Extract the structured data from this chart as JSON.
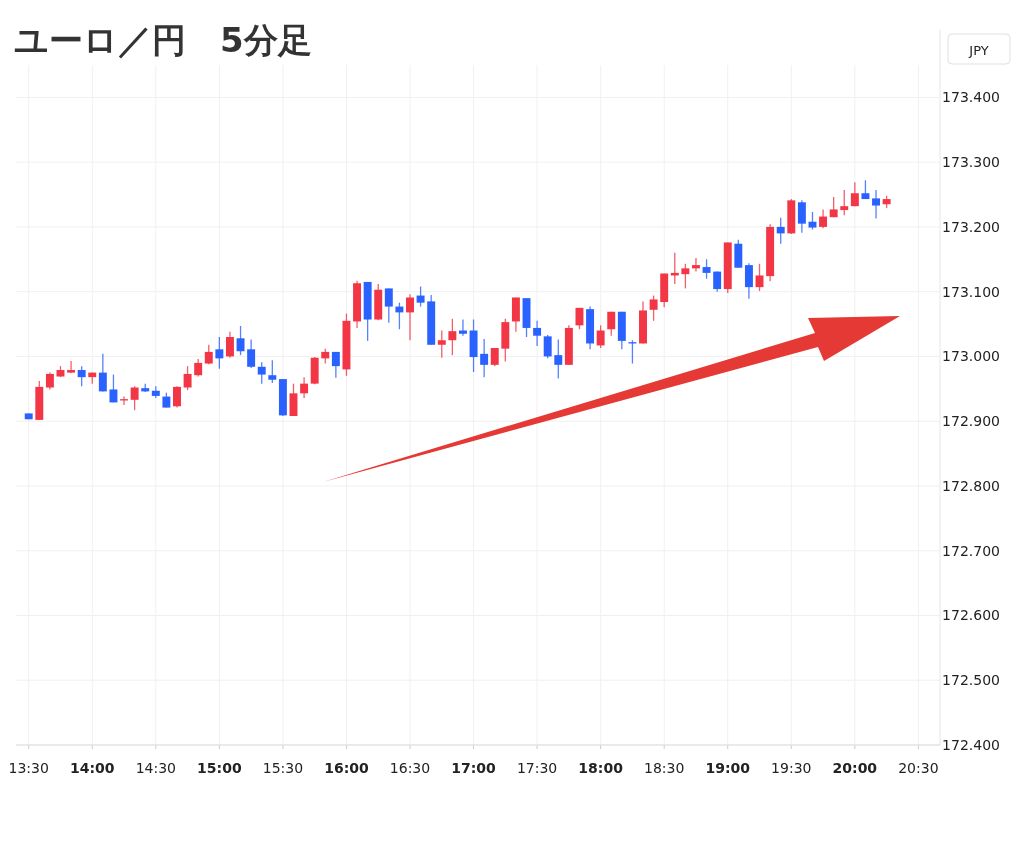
{
  "chart_data": {
    "type": "candlestick",
    "title": "ユーロ／円　5分足",
    "ylabel": "JPY",
    "grid": true,
    "x": [
      13.5,
      13.5833,
      13.6667,
      13.75,
      13.8333,
      13.9167,
      14,
      14.0833,
      14.1667,
      14.25,
      14.3333,
      14.4167,
      14.5,
      14.5833,
      14.6667,
      14.75,
      14.8333,
      14.9167,
      15,
      15.0833,
      15.1667,
      15.25,
      15.3333,
      15.4167,
      15.5,
      15.5833,
      15.6667,
      15.75,
      15.8333,
      15.9167,
      16,
      16.0833,
      16.1667,
      16.25,
      16.3333,
      16.4167,
      16.5,
      16.5833,
      16.6667,
      16.75,
      16.8333,
      16.9167,
      17,
      17.0833,
      17.1667,
      17.25,
      17.3333,
      17.4167,
      17.5,
      17.5833,
      17.6667,
      17.75,
      17.8333,
      17.9167,
      18,
      18.0833,
      18.1667,
      18.25,
      18.3333,
      18.4167,
      18.5,
      18.5833,
      18.6667,
      18.75,
      18.8333,
      18.9167,
      19,
      19.0833,
      19.1667,
      19.25,
      19.3333,
      19.4167,
      19.5,
      19.5833,
      19.6667,
      19.75,
      19.8333,
      19.9167,
      20,
      20.0833,
      20.1667,
      20.25
    ],
    "ohlc": [
      [
        172.912,
        172.912,
        172.903,
        172.903
      ],
      [
        172.902,
        172.962,
        172.902,
        172.953
      ],
      [
        172.952,
        172.975,
        172.949,
        172.973
      ],
      [
        172.969,
        172.985,
        172.968,
        172.979
      ],
      [
        172.975,
        172.993,
        172.974,
        172.979
      ],
      [
        172.979,
        172.985,
        172.954,
        172.968
      ],
      [
        172.968,
        172.975,
        172.958,
        172.975
      ],
      [
        172.975,
        173.004,
        172.946,
        172.946
      ],
      [
        172.949,
        172.972,
        172.929,
        172.929
      ],
      [
        172.932,
        172.938,
        172.925,
        172.934
      ],
      [
        172.933,
        172.954,
        172.917,
        172.952
      ],
      [
        172.951,
        172.958,
        172.945,
        172.946
      ],
      [
        172.947,
        172.954,
        172.936,
        172.939
      ],
      [
        172.938,
        172.944,
        172.921,
        172.921
      ],
      [
        172.923,
        172.954,
        172.921,
        172.953
      ],
      [
        172.952,
        172.985,
        172.948,
        172.973
      ],
      [
        172.971,
        172.996,
        172.969,
        172.99
      ],
      [
        172.989,
        173.018,
        172.988,
        173.007
      ],
      [
        173.011,
        173.03,
        172.981,
        172.997
      ],
      [
        173.0,
        173.038,
        172.998,
        173.03
      ],
      [
        173.028,
        173.047,
        173.002,
        173.008
      ],
      [
        173.011,
        173.026,
        172.982,
        172.984
      ],
      [
        172.984,
        172.991,
        172.958,
        172.972
      ],
      [
        172.971,
        172.994,
        172.959,
        172.964
      ],
      [
        172.965,
        172.965,
        172.908,
        172.909
      ],
      [
        172.908,
        172.958,
        172.908,
        172.943
      ],
      [
        172.943,
        172.968,
        172.936,
        172.958
      ],
      [
        172.958,
        172.999,
        172.957,
        172.998
      ],
      [
        172.997,
        173.012,
        172.989,
        173.007
      ],
      [
        173.007,
        173.007,
        172.967,
        172.985
      ],
      [
        172.98,
        173.066,
        172.97,
        173.055
      ],
      [
        173.054,
        173.117,
        173.044,
        173.113
      ],
      [
        173.115,
        173.115,
        173.024,
        173.057
      ],
      [
        173.057,
        173.112,
        173.056,
        173.103
      ],
      [
        173.105,
        173.105,
        173.052,
        173.077
      ],
      [
        173.077,
        173.083,
        173.042,
        173.068
      ],
      [
        173.068,
        173.096,
        173.025,
        173.091
      ],
      [
        173.094,
        173.108,
        173.077,
        173.083
      ],
      [
        173.085,
        173.095,
        173.018,
        173.018
      ],
      [
        173.018,
        173.04,
        172.998,
        173.025
      ],
      [
        173.025,
        173.058,
        173.002,
        173.039
      ],
      [
        173.04,
        173.057,
        173.032,
        173.035
      ],
      [
        173.04,
        173.057,
        172.976,
        172.999
      ],
      [
        173.004,
        173.027,
        172.968,
        172.987
      ],
      [
        172.987,
        173.013,
        172.985,
        173.013
      ],
      [
        173.012,
        173.058,
        172.992,
        173.053
      ],
      [
        173.054,
        173.091,
        173.038,
        173.091
      ],
      [
        173.09,
        173.09,
        173.03,
        173.044
      ],
      [
        173.044,
        173.055,
        173.016,
        173.032
      ],
      [
        173.031,
        173.033,
        172.997,
        173.0
      ],
      [
        173.002,
        173.026,
        172.966,
        172.987
      ],
      [
        172.987,
        173.048,
        172.987,
        173.044
      ],
      [
        173.048,
        173.075,
        173.042,
        173.075
      ],
      [
        173.073,
        173.077,
        173.011,
        173.02
      ],
      [
        173.017,
        173.048,
        173.013,
        173.04
      ],
      [
        173.042,
        173.069,
        173.032,
        173.069
      ],
      [
        173.069,
        173.069,
        173.011,
        173.024
      ],
      [
        173.022,
        173.025,
        172.989,
        173.02
      ],
      [
        173.02,
        173.085,
        173.02,
        173.071
      ],
      [
        173.072,
        173.094,
        173.055,
        173.088
      ],
      [
        173.084,
        173.128,
        173.076,
        173.128
      ],
      [
        173.125,
        173.16,
        173.112,
        173.129
      ],
      [
        173.127,
        173.143,
        173.105,
        173.136
      ],
      [
        173.136,
        173.152,
        173.131,
        173.141
      ],
      [
        173.138,
        173.15,
        173.12,
        173.129
      ],
      [
        173.131,
        173.131,
        173.1,
        173.104
      ],
      [
        173.104,
        173.176,
        173.098,
        173.176
      ],
      [
        173.174,
        173.18,
        173.137,
        173.137
      ],
      [
        173.141,
        173.144,
        173.089,
        173.107
      ],
      [
        173.107,
        173.143,
        173.101,
        173.125
      ],
      [
        173.124,
        173.204,
        173.116,
        173.2
      ],
      [
        173.2,
        173.214,
        173.174,
        173.19
      ],
      [
        173.19,
        173.243,
        173.189,
        173.241
      ],
      [
        173.238,
        173.241,
        173.191,
        173.205
      ],
      [
        173.208,
        173.223,
        173.196,
        173.199
      ],
      [
        173.2,
        173.227,
        173.198,
        173.216
      ],
      [
        173.215,
        173.246,
        173.215,
        173.227
      ],
      [
        173.226,
        173.257,
        173.218,
        173.232
      ],
      [
        173.232,
        173.269,
        173.232,
        173.252
      ],
      [
        173.252,
        173.272,
        173.243,
        173.243
      ],
      [
        173.244,
        173.257,
        173.213,
        173.233
      ],
      [
        173.235,
        173.248,
        173.229,
        173.243
      ]
    ],
    "colors": [
      "#2962ff",
      "#f23645",
      "#f23645",
      "#f23645",
      "#f23645",
      "#2962ff",
      "#f23645",
      "#2962ff",
      "#2962ff",
      "#f23645",
      "#f23645",
      "#2962ff",
      "#2962ff",
      "#2962ff",
      "#f23645",
      "#f23645",
      "#f23645",
      "#f23645",
      "#2962ff",
      "#f23645",
      "#2962ff",
      "#2962ff",
      "#2962ff",
      "#2962ff",
      "#2962ff",
      "#f23645",
      "#f23645",
      "#f23645",
      "#f23645",
      "#2962ff",
      "#f23645",
      "#f23645",
      "#2962ff",
      "#f23645",
      "#2962ff",
      "#2962ff",
      "#f23645",
      "#2962ff",
      "#2962ff",
      "#f23645",
      "#f23645",
      "#2962ff",
      "#2962ff",
      "#2962ff",
      "#f23645",
      "#f23645",
      "#f23645",
      "#2962ff",
      "#2962ff",
      "#2962ff",
      "#2962ff",
      "#f23645",
      "#f23645",
      "#2962ff",
      "#f23645",
      "#f23645",
      "#2962ff",
      "#2962ff",
      "#f23645",
      "#f23645",
      "#f23645",
      "#f23645",
      "#f23645",
      "#f23645",
      "#2962ff",
      "#2962ff",
      "#f23645",
      "#2962ff",
      "#2962ff",
      "#f23645",
      "#f23645",
      "#2962ff",
      "#f23645",
      "#2962ff",
      "#2962ff",
      "#f23645",
      "#f23645",
      "#f23645",
      "#f23645",
      "#2962ff",
      "#2962ff",
      "#f23645"
    ],
    "xlim": [
      13.4,
      20.67
    ],
    "ylim": [
      172.4,
      173.45
    ],
    "xticks": [
      {
        "value": 13.5,
        "label": "13:30"
      },
      {
        "value": 14,
        "label": "14:00"
      },
      {
        "value": 14.5,
        "label": "14:30"
      },
      {
        "value": 15,
        "label": "15:00"
      },
      {
        "value": 15.5,
        "label": "15:30"
      },
      {
        "value": 16,
        "label": "16:00"
      },
      {
        "value": 16.5,
        "label": "16:30"
      },
      {
        "value": 17,
        "label": "17:00"
      },
      {
        "value": 17.5,
        "label": "17:30"
      },
      {
        "value": 18,
        "label": "18:00"
      },
      {
        "value": 18.5,
        "label": "18:30"
      },
      {
        "value": 19,
        "label": "19:00"
      },
      {
        "value": 19.5,
        "label": "19:30"
      },
      {
        "value": 20,
        "label": "20:00"
      },
      {
        "value": 20.5,
        "label": "20:30"
      }
    ],
    "yticks": [
      {
        "value": 172.4,
        "label": "172.400"
      },
      {
        "value": 172.5,
        "label": "172.500"
      },
      {
        "value": 172.6,
        "label": "172.600"
      },
      {
        "value": 172.7,
        "label": "172.700"
      },
      {
        "value": 172.8,
        "label": "172.800"
      },
      {
        "value": 172.9,
        "label": "172.900"
      },
      {
        "value": 173,
        "label": "173.000"
      },
      {
        "value": 173.1,
        "label": "173.100"
      },
      {
        "value": 173.2,
        "label": "173.200"
      },
      {
        "value": 173.3,
        "label": "173.300"
      },
      {
        "value": 173.4,
        "label": "173.400"
      }
    ]
  }
}
